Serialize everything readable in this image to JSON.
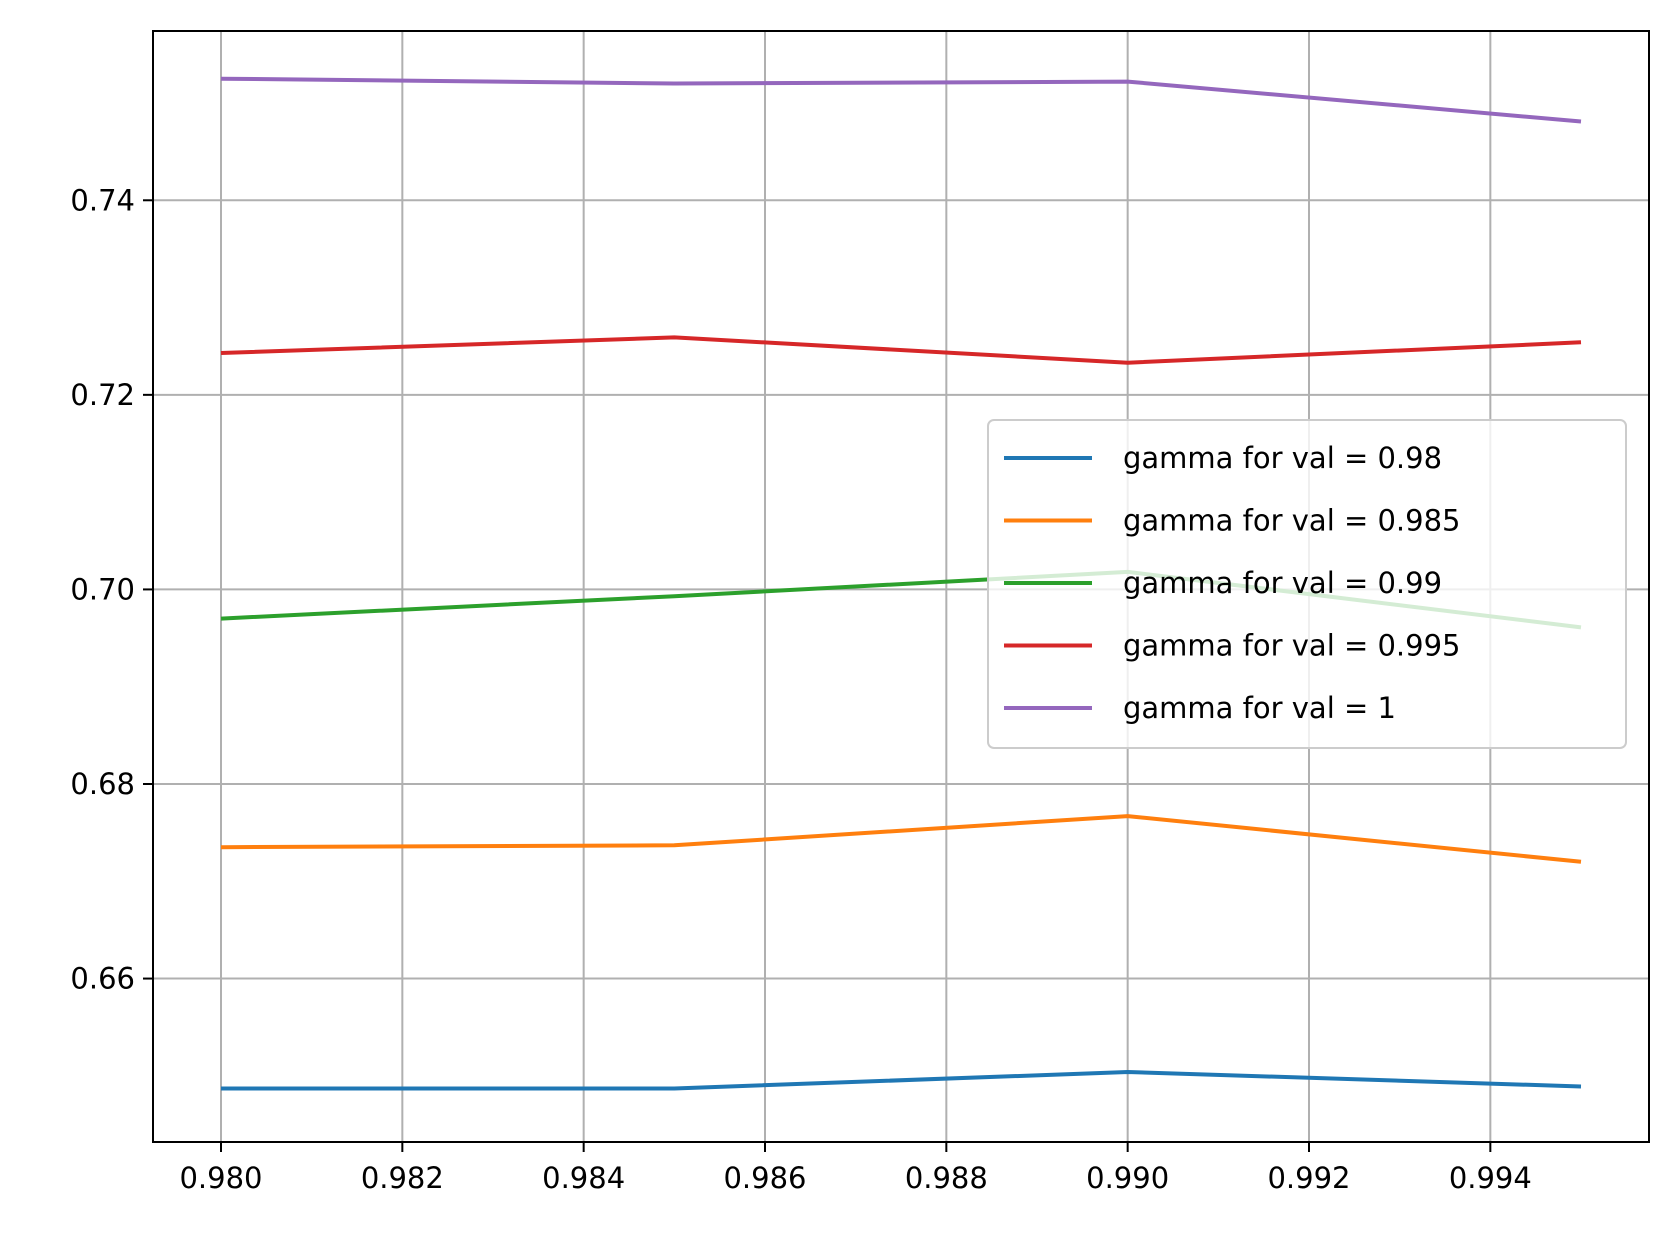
{
  "chart_data": {
    "type": "line",
    "title": "",
    "xlabel": "",
    "ylabel": "",
    "x": [
      0.98,
      0.985,
      0.99,
      0.995
    ],
    "xlim": [
      0.97925,
      0.99575
    ],
    "ylim": [
      0.6432,
      0.7574
    ],
    "xticks": [
      0.98,
      0.982,
      0.984,
      0.986,
      0.988,
      0.99,
      0.992,
      0.994
    ],
    "xtick_labels": [
      "0.980",
      "0.982",
      "0.984",
      "0.986",
      "0.988",
      "0.990",
      "0.992",
      "0.994"
    ],
    "yticks": [
      0.66,
      0.68,
      0.7,
      0.72,
      0.74
    ],
    "ytick_labels": [
      "0.66",
      "0.68",
      "0.70",
      "0.72",
      "0.74"
    ],
    "grid": true,
    "legend_position": "center-right",
    "series": [
      {
        "name": "gamma for val = 0.98",
        "color": "#1f77b4",
        "values": [
          0.6487,
          0.6487,
          0.6504,
          0.6489
        ]
      },
      {
        "name": "gamma for val = 0.985",
        "color": "#ff7f0e",
        "values": [
          0.6735,
          0.6737,
          0.6767,
          0.672
        ]
      },
      {
        "name": "gamma for val = 0.99",
        "color": "#2ca02c",
        "values": [
          0.697,
          0.6993,
          0.7018,
          0.6961
        ]
      },
      {
        "name": "gamma for val = 0.995",
        "color": "#d62728",
        "values": [
          0.7243,
          0.7259,
          0.7233,
          0.7254
        ]
      },
      {
        "name": "gamma for val = 1",
        "color": "#9467bd",
        "values": [
          0.7525,
          0.752,
          0.7522,
          0.7481
        ]
      }
    ]
  }
}
